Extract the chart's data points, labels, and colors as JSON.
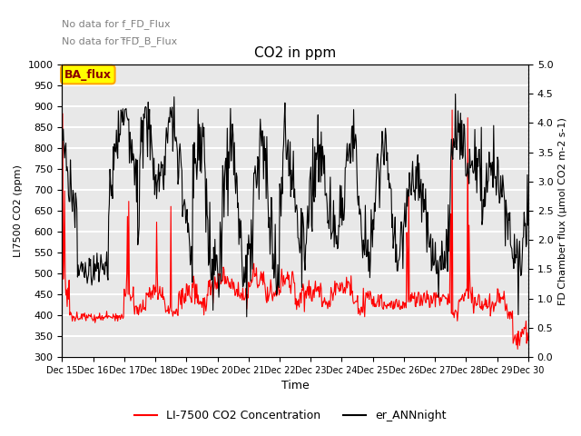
{
  "title": "CO2 in ppm",
  "xlabel": "Time",
  "ylabel_left": "LI7500 CO2 (ppm)",
  "ylabel_right": "FD Chamber flux (μmol CO2 m-2 s-1)",
  "ylim_left": [
    300,
    1000
  ],
  "ylim_right": [
    0.0,
    5.0
  ],
  "yticks_left": [
    300,
    350,
    400,
    450,
    500,
    550,
    600,
    650,
    700,
    750,
    800,
    850,
    900,
    950,
    1000
  ],
  "yticks_right": [
    0.0,
    0.5,
    1.0,
    1.5,
    2.0,
    2.5,
    3.0,
    3.5,
    4.0,
    4.5,
    5.0
  ],
  "xtick_labels": [
    "Dec 15",
    "Dec 16",
    "Dec 17",
    "Dec 18",
    "Dec 19",
    "Dec 20",
    "Dec 21",
    "Dec 22",
    "Dec 23",
    "Dec 24",
    "Dec 25",
    "Dec 26",
    "Dec 27",
    "Dec 28",
    "Dec 29",
    "Dec 30"
  ],
  "annotation_text1": "No data for f_FD_Flux",
  "annotation_text2": "No data for f̅FD̅_B_Flux",
  "ba_flux_label": "BA_flux",
  "line1_color": "red",
  "line2_color": "black",
  "legend_label1": "LI-7500 CO2 Concentration",
  "legend_label2": "er_ANNnight",
  "background_color": "#e8e8e8",
  "grid_color": "white"
}
